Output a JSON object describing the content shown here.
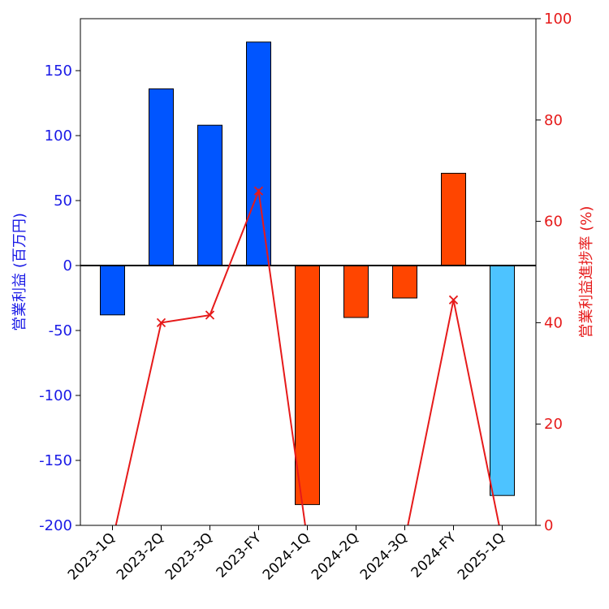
{
  "chart_data": {
    "type": "bar",
    "title": "",
    "categories": [
      "2023-1Q",
      "2023-2Q",
      "2023-3Q",
      "2023-FY",
      "2024-1Q",
      "2024-2Q",
      "2024-3Q",
      "2024-FY",
      "2025-1Q"
    ],
    "y_left": {
      "label": "営業利益 (百万円)",
      "ylim": [
        -200,
        190
      ],
      "ticks": [
        150,
        100,
        50,
        0,
        -50,
        -100,
        -150,
        -200
      ],
      "tick_labels": [
        "150",
        "100",
        "50",
        "0",
        "-50",
        "-100",
        "-150",
        "-200"
      ],
      "color": "#1a1ae6"
    },
    "y_right": {
      "label": "営業利益進捗率 (%)",
      "ylim": [
        0,
        100
      ],
      "ticks": [
        100,
        80,
        60,
        40,
        20,
        0
      ],
      "tick_labels": [
        "100",
        "80",
        "60",
        "40",
        "20",
        "0"
      ],
      "color": "#e61a1a"
    },
    "series": [
      {
        "type": "bar",
        "axis": "left",
        "values": [
          -38,
          136,
          108,
          172,
          -184,
          -40,
          -25,
          71,
          -177
        ],
        "colors": [
          "#0055ff",
          "#0055ff",
          "#0055ff",
          "#0055ff",
          "#ff4500",
          "#ff4500",
          "#ff4500",
          "#ff4500",
          "#4dc3ff"
        ]
      },
      {
        "type": "line",
        "axis": "right",
        "marker": "x",
        "color": "#e61a1a",
        "values": [
          -3,
          40,
          41.5,
          66,
          -3,
          null,
          -3,
          44.5,
          -3
        ]
      }
    ],
    "grid": false
  }
}
